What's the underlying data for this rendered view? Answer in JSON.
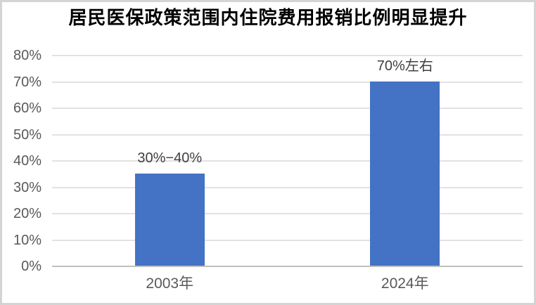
{
  "chart_data": {
    "type": "bar",
    "title": "居民医保政策范围内住院费用报销比例明显提升",
    "categories": [
      "2003年",
      "2024年"
    ],
    "values": [
      35,
      70
    ],
    "data_labels": [
      "30%−40%",
      "70%左右"
    ],
    "ytick_labels": [
      "0%",
      "10%",
      "20%",
      "30%",
      "40%",
      "50%",
      "60%",
      "70%",
      "80%"
    ],
    "ylim": [
      0,
      80
    ],
    "ytick_step": 10,
    "xlabel": "",
    "ylabel": "",
    "grid": true,
    "legend": false,
    "colors": {
      "bar": "#4472C4",
      "gridline": "#E2E2E2",
      "axis_line": "#BFBFBF",
      "axis_labels": "#595959",
      "data_labels": "#404040",
      "title": "#000000",
      "background": "#FFFFFF",
      "frame_border": "#D4D4D4"
    }
  }
}
